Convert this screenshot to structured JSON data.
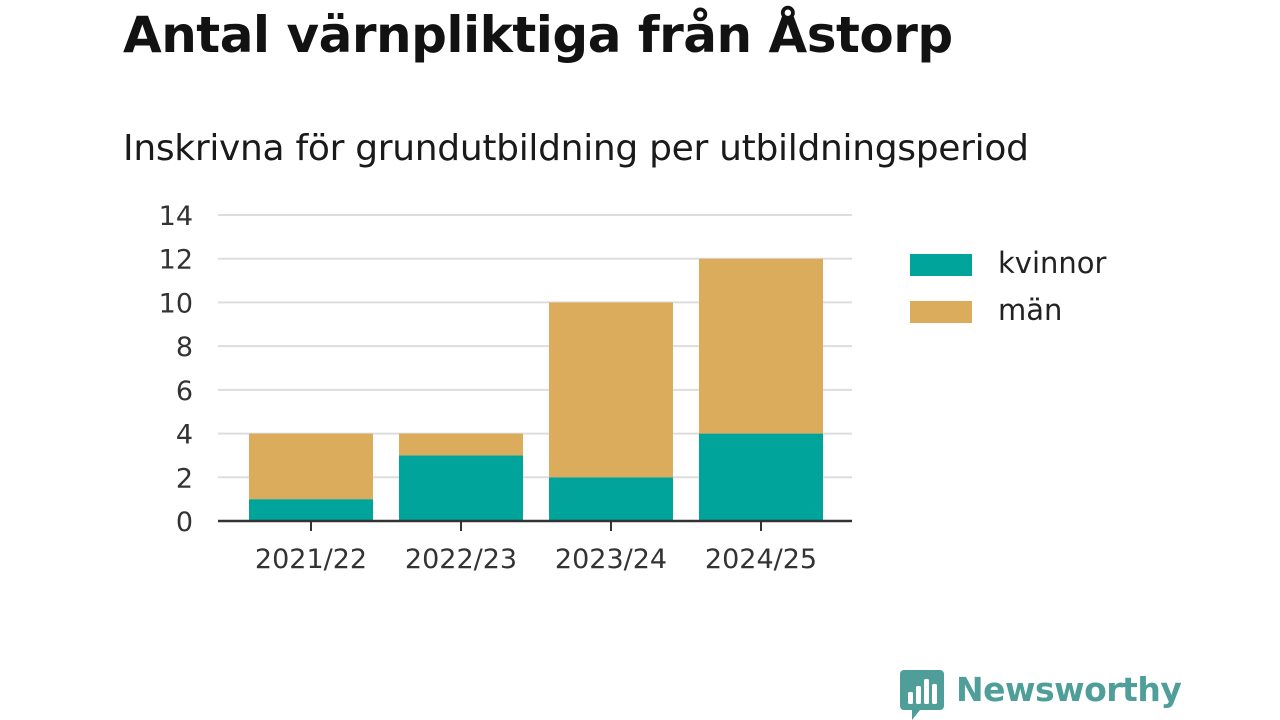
{
  "header": {
    "title": "Antal värnpliktiga från Åstorp",
    "subtitle": "Inskrivna för grundutbildning per utbildningsperiod"
  },
  "brand": {
    "name": "Newsworthy",
    "icon": "newsworthy-bar-chart-icon",
    "color": "#4f9e99"
  },
  "chart_data": {
    "type": "bar",
    "stacked": true,
    "title": "Inskrivna för grundutbildning per utbildningsperiod",
    "categories": [
      "2021/22",
      "2022/23",
      "2023/24",
      "2024/25"
    ],
    "series": [
      {
        "name": "kvinnor",
        "color": "#00a49a",
        "values": [
          1,
          3,
          2,
          4
        ]
      },
      {
        "name": "män",
        "color": "#dbac5b",
        "values": [
          3,
          1,
          8,
          8
        ]
      }
    ],
    "ylim": [
      0,
      14
    ],
    "yticks": [
      0,
      2,
      4,
      6,
      8,
      10,
      12,
      14
    ],
    "grid": true,
    "legend": "right"
  }
}
